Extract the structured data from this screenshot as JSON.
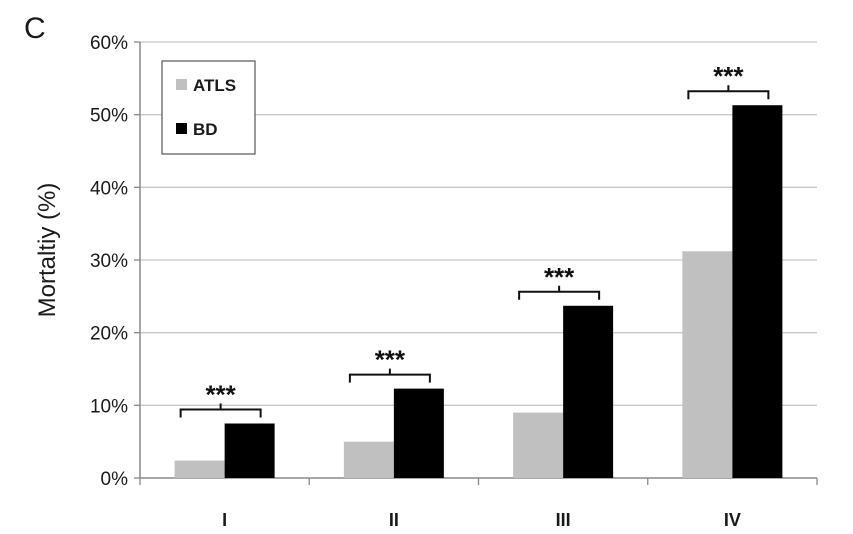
{
  "panel_label": "C",
  "chart_data": {
    "type": "bar",
    "title": "",
    "xlabel": "",
    "ylabel": "Mortaltiy (%)",
    "categories": [
      "I",
      "II",
      "III",
      "IV"
    ],
    "series": [
      {
        "name": "ATLS",
        "values": [
          2.4,
          5.0,
          9.0,
          31.2
        ],
        "color": "#c0c0c0"
      },
      {
        "name": "BD",
        "values": [
          7.5,
          12.3,
          23.7,
          51.3
        ],
        "color": "#000000"
      }
    ],
    "ylim": [
      0,
      60
    ],
    "yticks": [
      0,
      10,
      20,
      30,
      40,
      50,
      60
    ],
    "ytick_labels": [
      "0%",
      "10%",
      "20%",
      "30%",
      "40%",
      "50%",
      "60%"
    ],
    "grid": true,
    "legend_position": "top-left",
    "significance": [
      "***",
      "***",
      "***",
      "***"
    ]
  }
}
